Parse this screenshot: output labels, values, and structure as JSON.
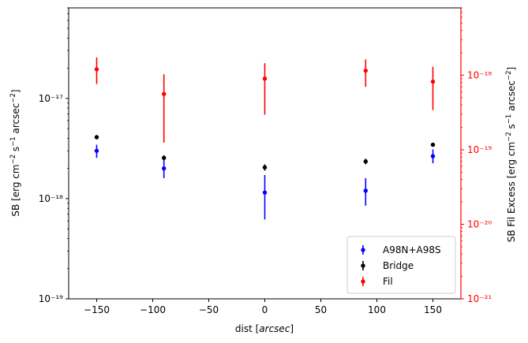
{
  "chart_data": {
    "type": "scatter",
    "xlabel": "dist [arcsec]",
    "xlabel_text": "dist [",
    "xlabel_unit": "arcsec",
    "xlabel_close": "]",
    "ylabel": "SB [erg cm^-2 s^-1 arcsec^-2]",
    "ylabel_right": "SB Fil Excess [erg cm^-2 s^-1 arcsec^-2]",
    "xlim": [
      -175,
      175
    ],
    "ylim": [
      1e-19,
      8e-17
    ],
    "ylim_right": [
      1e-21,
      8e-18
    ],
    "yscale": "log",
    "yscale_right": "log",
    "x_ticks": [
      -150,
      -100,
      -50,
      0,
      50,
      100,
      150
    ],
    "x_tick_labels": [
      "−150",
      "−100",
      "−50",
      "0",
      "50",
      "100",
      "150"
    ],
    "y_ticks": [
      1e-19,
      1e-18,
      1e-17
    ],
    "y_tick_labels": [
      "10⁻¹⁹",
      "10⁻¹⁸",
      "10⁻¹⁷"
    ],
    "y_ticks_right": [
      1e-21,
      1e-20,
      1e-19,
      1e-18
    ],
    "y_tick_labels_right": [
      "10⁻²¹",
      "10⁻²⁰",
      "10⁻¹⁹",
      "10⁻¹⁸"
    ],
    "grid": false,
    "legend_position": "bottom-right",
    "series": [
      {
        "name": "A98N+A98S",
        "color": "#0000ff",
        "axis": "left",
        "x": [
          -150,
          -90,
          0,
          90,
          150
        ],
        "y": [
          3e-18,
          2e-18,
          1.15e-18,
          1.2e-18,
          2.65e-18
        ],
        "y_low": [
          2.55e-18,
          1.6e-18,
          6.2e-19,
          8.5e-19,
          2.25e-18
        ],
        "y_high": [
          3.45e-18,
          2.4e-18,
          1.72e-18,
          1.6e-18,
          3.1e-18
        ]
      },
      {
        "name": "Bridge",
        "color": "#000000",
        "axis": "left",
        "x": [
          -150,
          -90,
          0,
          90,
          150
        ],
        "y": [
          4.1e-18,
          2.55e-18,
          2.05e-18,
          2.35e-18,
          3.45e-18
        ],
        "y_low": [
          3.9e-18,
          2.4e-18,
          1.9e-18,
          2.2e-18,
          3.3e-18
        ],
        "y_high": [
          4.3e-18,
          2.7e-18,
          2.2e-18,
          2.5e-18,
          3.6e-18
        ]
      },
      {
        "name": "Fil",
        "color": "#ff0000",
        "axis": "right",
        "x": [
          -150,
          -90,
          0,
          90,
          150
        ],
        "y": [
          1.2e-18,
          5.6e-19,
          9e-19,
          1.15e-18,
          8.2e-19
        ],
        "y_low": [
          7.6e-19,
          1.25e-19,
          2.95e-19,
          7e-19,
          3.4e-19
        ],
        "y_high": [
          1.73e-18,
          1.03e-18,
          1.45e-18,
          1.63e-18,
          1.3e-18
        ]
      }
    ]
  }
}
